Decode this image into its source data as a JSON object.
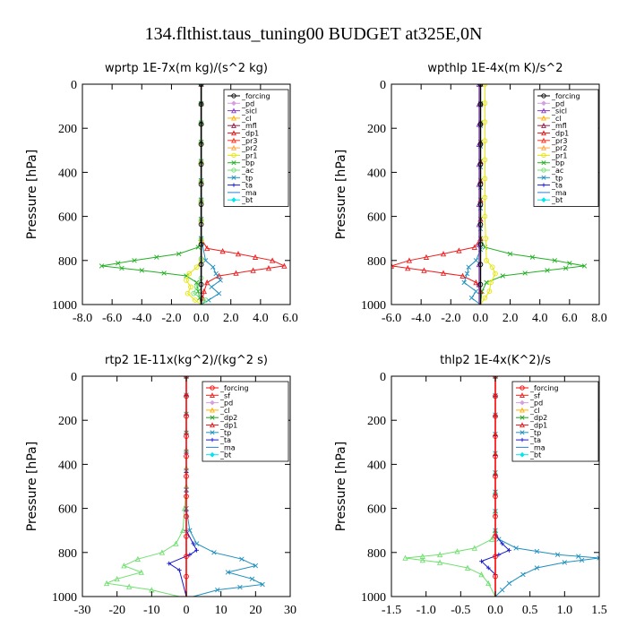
{
  "figure_title": "134.flthist.taus_tuning00  BUDGET at325E,0N",
  "colors": {
    "forcing_black": "#000000",
    "forcing_red": "#ff0000",
    "pd": "#d59fe0",
    "sicl": "#8a3cc7",
    "cl": "#ffb000",
    "mfl": "#9a1f4a",
    "dp1": "#ee1c1c",
    "dp2": "#22a022",
    "pr3": "#ff3322",
    "pr2": "#ffa640",
    "pr1": "#e6e600",
    "bp": "#22b022",
    "ac": "#70e070",
    "tp": "#1e8fbf",
    "ta": "#1a1acc",
    "ma": "#2f7fd0",
    "bt": "#00e5ee",
    "sf": "#ee2222"
  },
  "chart_data": [
    {
      "type": "line",
      "title": "wprtp   1E-7x(m kg)/(s^2 kg)",
      "ylabel": "Pressure [hPa]",
      "xlim": [
        -8,
        6
      ],
      "ylim": [
        1000,
        0
      ],
      "xticks": [
        "-8.0",
        "-6.0",
        "-4.0",
        "-2.0",
        "0.0",
        "2.0",
        "4.0",
        "6.0"
      ],
      "yticks": [
        "0",
        "200",
        "400",
        "600",
        "800",
        "1000"
      ],
      "legend": [
        "_forcing",
        "_pd",
        "_sicl",
        "_cl",
        "_mfl",
        "_dp1",
        "_pr3",
        "_pr2",
        "_pr1",
        "_bp",
        "_ac",
        "_tp",
        "_ta",
        "_ma",
        "_bt"
      ],
      "series": [
        {
          "name": "_bp",
          "color": "bp",
          "points": [
            [
              0.0,
              0
            ],
            [
              0.0,
              700
            ],
            [
              -0.2,
              740
            ],
            [
              -1.5,
              770
            ],
            [
              -4.5,
              800
            ],
            [
              -6.7,
              825
            ],
            [
              -4.0,
              845
            ],
            [
              -1.0,
              870
            ],
            [
              -0.3,
              900
            ],
            [
              -0.2,
              940
            ],
            [
              -0.1,
              970
            ],
            [
              0.0,
              1000
            ]
          ]
        },
        {
          "name": "_dp1",
          "color": "dp1",
          "points": [
            [
              0.0,
              0
            ],
            [
              0.0,
              700
            ],
            [
              0.4,
              745
            ],
            [
              2.5,
              770
            ],
            [
              4.8,
              800
            ],
            [
              5.6,
              825
            ],
            [
              3.5,
              845
            ],
            [
              1.2,
              870
            ],
            [
              0.4,
              900
            ],
            [
              0.2,
              940
            ],
            [
              0.1,
              970
            ],
            [
              0.0,
              1000
            ]
          ]
        },
        {
          "name": "_tp",
          "color": "tp",
          "points": [
            [
              0.0,
              0
            ],
            [
              0.0,
              700
            ],
            [
              0.3,
              800
            ],
            [
              0.8,
              830
            ],
            [
              1.0,
              860
            ],
            [
              1.3,
              890
            ],
            [
              0.7,
              920
            ],
            [
              1.2,
              950
            ],
            [
              0.5,
              980
            ],
            [
              0.0,
              1000
            ]
          ]
        },
        {
          "name": "_pr1",
          "color": "pr1",
          "points": [
            [
              0.0,
              0
            ],
            [
              0.0,
              800
            ],
            [
              -0.3,
              830
            ],
            [
              -0.8,
              860
            ],
            [
              -1.0,
              890
            ],
            [
              -0.7,
              920
            ],
            [
              -0.9,
              950
            ],
            [
              -0.4,
              980
            ],
            [
              0.0,
              1000
            ]
          ]
        },
        {
          "name": "_ac",
          "color": "ac",
          "points": [
            [
              0.0,
              0
            ],
            [
              0.0,
              880
            ],
            [
              -0.3,
              920
            ],
            [
              -0.5,
              950
            ],
            [
              0.3,
              980
            ],
            [
              0.0,
              1000
            ]
          ]
        },
        {
          "name": "_forcing",
          "color": "forcing_black",
          "points": [
            [
              0.0,
              0
            ],
            [
              0.0,
              1000
            ]
          ]
        }
      ]
    },
    {
      "type": "line",
      "title": "wpthlp   1E-4x(m K)/s^2",
      "ylabel": "Pressure [hPa]",
      "xlim": [
        -6,
        8
      ],
      "ylim": [
        1000,
        0
      ],
      "xticks": [
        "-6.0",
        "-4.0",
        "-2.0",
        "0.0",
        "2.0",
        "4.0",
        "6.0",
        "8.0"
      ],
      "yticks": [
        "0",
        "200",
        "400",
        "600",
        "800",
        "1000"
      ],
      "legend": [
        "_forcing",
        "_pd",
        "_sicl",
        "_cl",
        "_mfl",
        "_dp1",
        "_pr3",
        "_pr2",
        "_pr1",
        "_bp",
        "_ac",
        "_tp",
        "_ta",
        "_ma",
        "_bt"
      ],
      "series": [
        {
          "name": "_bp",
          "color": "bp",
          "points": [
            [
              0.0,
              0
            ],
            [
              0.0,
              700
            ],
            [
              0.3,
              740
            ],
            [
              2.0,
              770
            ],
            [
              5.0,
              800
            ],
            [
              7.0,
              825
            ],
            [
              4.5,
              845
            ],
            [
              1.5,
              870
            ],
            [
              0.4,
              900
            ],
            [
              0.1,
              940
            ],
            [
              0.0,
              1000
            ]
          ]
        },
        {
          "name": "_dp1",
          "color": "dp1",
          "points": [
            [
              0.0,
              0
            ],
            [
              0.0,
              700
            ],
            [
              -0.4,
              740
            ],
            [
              -2.5,
              770
            ],
            [
              -4.8,
              800
            ],
            [
              -6.0,
              825
            ],
            [
              -3.8,
              845
            ],
            [
              -1.2,
              870
            ],
            [
              -0.3,
              900
            ],
            [
              0.0,
              940
            ],
            [
              0.0,
              1000
            ]
          ]
        },
        {
          "name": "_tp",
          "color": "tp",
          "points": [
            [
              0.0,
              0
            ],
            [
              0.0,
              750
            ],
            [
              -0.3,
              800
            ],
            [
              -0.8,
              830
            ],
            [
              -0.9,
              860
            ],
            [
              -1.1,
              900
            ],
            [
              -0.3,
              940
            ],
            [
              -0.6,
              970
            ],
            [
              0.0,
              1000
            ]
          ]
        },
        {
          "name": "_pr1",
          "color": "pr1",
          "points": [
            [
              0.3,
              0
            ],
            [
              0.3,
              600
            ],
            [
              0.4,
              800
            ],
            [
              0.8,
              830
            ],
            [
              1.0,
              860
            ],
            [
              0.7,
              900
            ],
            [
              0.6,
              940
            ],
            [
              0.3,
              970
            ],
            [
              0.0,
              1000
            ]
          ]
        },
        {
          "name": "_sicl",
          "color": "sicl",
          "points": [
            [
              -0.1,
              0
            ],
            [
              -0.1,
              1000
            ]
          ]
        },
        {
          "name": "_forcing",
          "color": "forcing_black",
          "points": [
            [
              0.0,
              0
            ],
            [
              0.0,
              1000
            ]
          ]
        }
      ]
    },
    {
      "type": "line",
      "title": "rtp2   1E-11x(kg^2)/(kg^2 s)",
      "ylabel": "Pressure [hPa]",
      "xlim": [
        -30,
        30
      ],
      "ylim": [
        1000,
        0
      ],
      "xticks": [
        "-30",
        "-20",
        "-10",
        "0",
        "10",
        "20",
        "30"
      ],
      "yticks": [
        "0",
        "200",
        "400",
        "600",
        "800",
        "1000"
      ],
      "legend": [
        "_forcing",
        "_sf",
        "_pd",
        "_cl",
        "_dp2",
        "_dp1",
        "_tp",
        "_ta",
        "_ma",
        "_bt"
      ],
      "series": [
        {
          "name": "_dp1",
          "color": "ac",
          "points": [
            [
              0.0,
              0
            ],
            [
              0.0,
              500
            ],
            [
              -0.5,
              600
            ],
            [
              -1.0,
              700
            ],
            [
              -3.0,
              760
            ],
            [
              -7.0,
              800
            ],
            [
              -14.0,
              830
            ],
            [
              -18.0,
              860
            ],
            [
              -13.0,
              890
            ],
            [
              -20.0,
              920
            ],
            [
              -23.0,
              940
            ],
            [
              -10.0,
              970
            ],
            [
              -2.0,
              1000
            ]
          ]
        },
        {
          "name": "_tp",
          "color": "tp",
          "points": [
            [
              0.0,
              0
            ],
            [
              0.0,
              600
            ],
            [
              1.0,
              700
            ],
            [
              3.0,
              760
            ],
            [
              8.0,
              800
            ],
            [
              16.0,
              830
            ],
            [
              20.0,
              860
            ],
            [
              12.0,
              890
            ],
            [
              19.0,
              920
            ],
            [
              22.0,
              945
            ],
            [
              9.0,
              970
            ],
            [
              2.0,
              1000
            ]
          ]
        },
        {
          "name": "_ta",
          "color": "ta",
          "points": [
            [
              0.0,
              0
            ],
            [
              0.0,
              700
            ],
            [
              2.0,
              760
            ],
            [
              3.0,
              790
            ],
            [
              1.0,
              810
            ],
            [
              -5.0,
              850
            ],
            [
              -2.0,
              880
            ],
            [
              0.0,
              1000
            ]
          ]
        },
        {
          "name": "_forcing",
          "color": "forcing_red",
          "points": [
            [
              0.0,
              0
            ],
            [
              0.0,
              1000
            ]
          ]
        }
      ]
    },
    {
      "type": "line",
      "title": "thlp2   1E-4x(K^2)/s",
      "ylabel": "Pressure [hPa]",
      "xlim": [
        -1.5,
        1.5
      ],
      "ylim": [
        1000,
        0
      ],
      "xticks": [
        "-1.5",
        "-1.0",
        "-0.5",
        "0.0",
        "0.5",
        "1.0",
        "1.5"
      ],
      "yticks": [
        "0",
        "200",
        "400",
        "600",
        "800",
        "1000"
      ],
      "legend": [
        "_forcing",
        "_sf",
        "_pd",
        "_cl",
        "_dp2",
        "_dp1",
        "_tp",
        "_ta",
        "_ma",
        "_bt"
      ],
      "series": [
        {
          "name": "_dp1",
          "color": "ac",
          "points": [
            [
              0.0,
              0
            ],
            [
              0.0,
              700
            ],
            [
              -0.05,
              740
            ],
            [
              -0.3,
              780
            ],
            [
              -0.8,
              810
            ],
            [
              -1.3,
              825
            ],
            [
              -0.8,
              845
            ],
            [
              -0.4,
              870
            ],
            [
              -0.2,
              900
            ],
            [
              -0.1,
              940
            ],
            [
              0.0,
              1000
            ]
          ]
        },
        {
          "name": "_tp",
          "color": "tp",
          "points": [
            [
              0.0,
              0
            ],
            [
              0.0,
              700
            ],
            [
              0.05,
              740
            ],
            [
              0.3,
              780
            ],
            [
              0.9,
              810
            ],
            [
              1.5,
              825
            ],
            [
              1.0,
              845
            ],
            [
              0.6,
              870
            ],
            [
              0.4,
              900
            ],
            [
              0.2,
              940
            ],
            [
              0.1,
              970
            ],
            [
              0.0,
              1000
            ]
          ]
        },
        {
          "name": "_ta",
          "color": "ta",
          "points": [
            [
              0.0,
              0
            ],
            [
              0.0,
              720
            ],
            [
              0.1,
              760
            ],
            [
              0.2,
              790
            ],
            [
              0.05,
              810
            ],
            [
              -0.2,
              840
            ],
            [
              -0.1,
              870
            ],
            [
              0.0,
              900
            ],
            [
              0.0,
              1000
            ]
          ]
        },
        {
          "name": "_forcing",
          "color": "forcing_red",
          "points": [
            [
              0.0,
              0
            ],
            [
              0.0,
              1000
            ]
          ]
        }
      ]
    }
  ]
}
